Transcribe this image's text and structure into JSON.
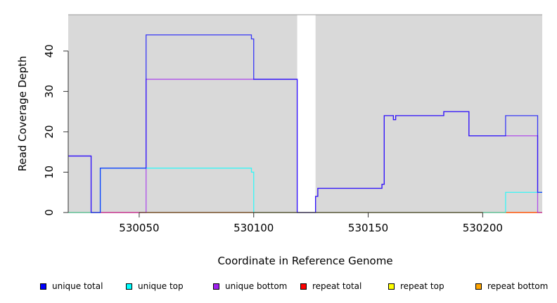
{
  "chart_data": {
    "type": "line",
    "step": true,
    "title": "",
    "xlabel": "Coordinate in Reference Genome",
    "ylabel": "Read Coverage Depth",
    "xlim": [
      530019,
      530226
    ],
    "ylim": [
      0,
      49
    ],
    "xticks": [
      530050,
      530100,
      530150,
      530200
    ],
    "xtick_labels": [
      "530050",
      "530100",
      "530150",
      "530200"
    ],
    "yticks": [
      0,
      10,
      20,
      30,
      40
    ],
    "ytick_labels": [
      "0",
      "10",
      "20",
      "30",
      "40"
    ],
    "background_color": "#d9d9d9",
    "unshaded_regions": [
      [
        530119,
        530127
      ]
    ],
    "legend_position": "bottom",
    "series": [
      {
        "name": "unique total",
        "color": "#0000ff",
        "steps": [
          [
            530019,
            14
          ],
          [
            530029,
            0
          ],
          [
            530033,
            11
          ],
          [
            530053,
            44
          ],
          [
            530099,
            43
          ],
          [
            530100,
            33
          ],
          [
            530119,
            0
          ],
          [
            530127,
            4
          ],
          [
            530128,
            6
          ],
          [
            530156,
            7
          ],
          [
            530157,
            24
          ],
          [
            530161,
            23
          ],
          [
            530162,
            24
          ],
          [
            530183,
            25
          ],
          [
            530194,
            19
          ],
          [
            530210,
            24
          ],
          [
            530224,
            5
          ]
        ]
      },
      {
        "name": "unique top",
        "color": "#00ffff",
        "steps": [
          [
            530019,
            0
          ],
          [
            530033,
            11
          ],
          [
            530099,
            10
          ],
          [
            530100,
            0
          ],
          [
            530210,
            5
          ]
        ]
      },
      {
        "name": "unique bottom",
        "color": "#a020f0",
        "steps": [
          [
            530019,
            14
          ],
          [
            530029,
            0
          ],
          [
            530053,
            33
          ],
          [
            530119,
            0
          ],
          [
            530127,
            4
          ],
          [
            530128,
            6
          ],
          [
            530156,
            7
          ],
          [
            530157,
            24
          ],
          [
            530161,
            23
          ],
          [
            530162,
            24
          ],
          [
            530183,
            25
          ],
          [
            530194,
            19
          ],
          [
            530224,
            0
          ]
        ]
      },
      {
        "name": "repeat total",
        "color": "#ff0000",
        "steps": [
          [
            530019,
            0
          ]
        ]
      },
      {
        "name": "repeat top",
        "color": "#ffff00",
        "steps": [
          [
            530019,
            0
          ]
        ]
      },
      {
        "name": "repeat bottom",
        "color": "#ffa500",
        "steps": [
          [
            530019,
            0
          ]
        ]
      }
    ]
  }
}
